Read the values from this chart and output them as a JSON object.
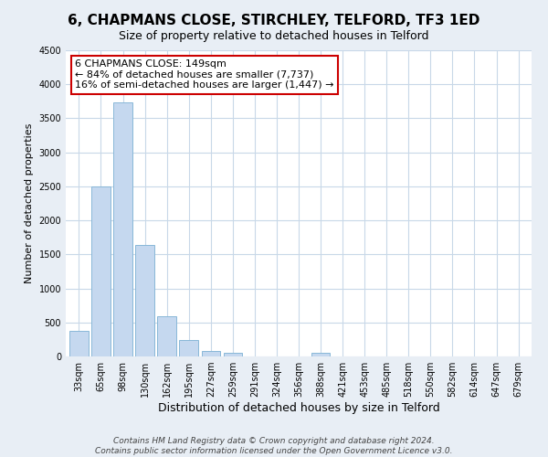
{
  "title": "6, CHAPMANS CLOSE, STIRCHLEY, TELFORD, TF3 1ED",
  "subtitle": "Size of property relative to detached houses in Telford",
  "xlabel": "Distribution of detached houses by size in Telford",
  "ylabel": "Number of detached properties",
  "categories": [
    "33sqm",
    "65sqm",
    "98sqm",
    "130sqm",
    "162sqm",
    "195sqm",
    "227sqm",
    "259sqm",
    "291sqm",
    "324sqm",
    "356sqm",
    "388sqm",
    "421sqm",
    "453sqm",
    "485sqm",
    "518sqm",
    "550sqm",
    "582sqm",
    "614sqm",
    "647sqm",
    "679sqm"
  ],
  "values": [
    380,
    2500,
    3730,
    1640,
    595,
    240,
    80,
    50,
    0,
    0,
    0,
    50,
    0,
    0,
    0,
    0,
    0,
    0,
    0,
    0,
    0
  ],
  "bar_color": "#c5d8ef",
  "bar_edge_color": "#89b8d8",
  "annotation_title": "6 CHAPMANS CLOSE: 149sqm",
  "annotation_line1": "← 84% of detached houses are smaller (7,737)",
  "annotation_line2": "16% of semi-detached houses are larger (1,447) →",
  "annotation_box_facecolor": "#ffffff",
  "annotation_box_edgecolor": "#cc0000",
  "ylim": [
    0,
    4500
  ],
  "yticks": [
    0,
    500,
    1000,
    1500,
    2000,
    2500,
    3000,
    3500,
    4000,
    4500
  ],
  "footer_line1": "Contains HM Land Registry data © Crown copyright and database right 2024.",
  "footer_line2": "Contains public sector information licensed under the Open Government Licence v3.0.",
  "fig_bg_color": "#e8eef5",
  "plot_bg_color": "#ffffff",
  "grid_color": "#c8d8e8",
  "title_fontsize": 11,
  "xlabel_fontsize": 9,
  "ylabel_fontsize": 8,
  "tick_fontsize": 7,
  "footer_fontsize": 6.5,
  "annotation_fontsize": 8
}
